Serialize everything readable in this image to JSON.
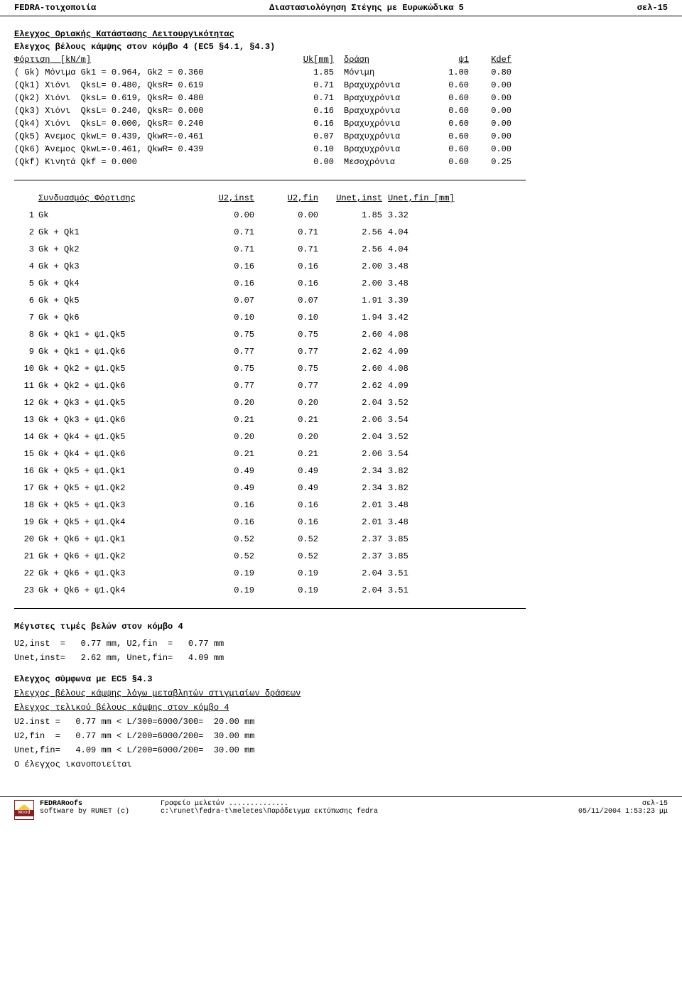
{
  "header": {
    "left": "FEDRA-τοιχοποιία",
    "center": "Διαστασιολόγηση Στέγης με Ευρωκώδικα 5",
    "right": "σελ-15"
  },
  "section1_title": "Ελεγχος Οριακής Κατάστασης Λειτουργικότητας",
  "section1_sub": "Ελεγχος βέλους κάμψης στον κόμβο 4 (EC5  §4.1, §4.3)",
  "loads": {
    "head": {
      "c1": "Φόρτιση  [kN/m]",
      "c2": "Uk[mm]",
      "c3": "δράση",
      "c4": "ψ1",
      "c5": "Kdef"
    },
    "rows": [
      {
        "c1": "( Gk) Μόνιμα Gk1 = 0.964, Gk2 = 0.360",
        "c2": "1.85",
        "c3": "Μόνιμη",
        "c4": "1.00",
        "c5": "0.80"
      },
      {
        "c1": "(Qk1) Χιόνι  QksL= 0.480, QksR= 0.619",
        "c2": "0.71",
        "c3": "Βραχυχρόνια",
        "c4": "0.60",
        "c5": "0.00"
      },
      {
        "c1": "(Qk2) Χιόνι  QksL= 0.619, QksR= 0.480",
        "c2": "0.71",
        "c3": "Βραχυχρόνια",
        "c4": "0.60",
        "c5": "0.00"
      },
      {
        "c1": "(Qk3) Χιόνι  QksL= 0.240, QksR= 0.000",
        "c2": "0.16",
        "c3": "Βραχυχρόνια",
        "c4": "0.60",
        "c5": "0.00"
      },
      {
        "c1": "(Qk4) Χιόνι  QksL= 0.000, QksR= 0.240",
        "c2": "0.16",
        "c3": "Βραχυχρόνια",
        "c4": "0.60",
        "c5": "0.00"
      },
      {
        "c1": "(Qk5) Άνεμος QkwL= 0.439, QkwR=-0.461",
        "c2": "0.07",
        "c3": "Βραχυχρόνια",
        "c4": "0.60",
        "c5": "0.00"
      },
      {
        "c1": "(Qk6) Άνεμος QkwL=-0.461, QkwR= 0.439",
        "c2": "0.10",
        "c3": "Βραχυχρόνια",
        "c4": "0.60",
        "c5": "0.00"
      },
      {
        "c1": "(Qkf) Κινητά Qkf = 0.000",
        "c2": "0.00",
        "c3": "Μεσοχρόνια",
        "c4": "0.60",
        "c5": "0.25"
      }
    ]
  },
  "combs": {
    "head": {
      "name": "Συνδυασμός Φόρτισης",
      "u2i": "U2,inst",
      "u2f": "U2,fin",
      "uni": "Unet,inst",
      "unf": "Unet,fin [mm]"
    },
    "rows": [
      {
        "i": "1",
        "n": "Gk",
        "a": "0.00",
        "b": "0.00",
        "c": "1.85",
        "d": "3.32"
      },
      {
        "i": "2",
        "n": "Gk + Qk1",
        "a": "0.71",
        "b": "0.71",
        "c": "2.56",
        "d": "4.04"
      },
      {
        "i": "3",
        "n": "Gk + Qk2",
        "a": "0.71",
        "b": "0.71",
        "c": "2.56",
        "d": "4.04"
      },
      {
        "i": "4",
        "n": "Gk + Qk3",
        "a": "0.16",
        "b": "0.16",
        "c": "2.00",
        "d": "3.48"
      },
      {
        "i": "5",
        "n": "Gk + Qk4",
        "a": "0.16",
        "b": "0.16",
        "c": "2.00",
        "d": "3.48"
      },
      {
        "i": "6",
        "n": "Gk + Qk5",
        "a": "0.07",
        "b": "0.07",
        "c": "1.91",
        "d": "3.39"
      },
      {
        "i": "7",
        "n": "Gk + Qk6",
        "a": "0.10",
        "b": "0.10",
        "c": "1.94",
        "d": "3.42"
      },
      {
        "i": "8",
        "n": "Gk + Qk1 + ψ1.Qk5",
        "a": "0.75",
        "b": "0.75",
        "c": "2.60",
        "d": "4.08"
      },
      {
        "i": "9",
        "n": "Gk + Qk1 + ψ1.Qk6",
        "a": "0.77",
        "b": "0.77",
        "c": "2.62",
        "d": "4.09"
      },
      {
        "i": "10",
        "n": "Gk + Qk2 + ψ1.Qk5",
        "a": "0.75",
        "b": "0.75",
        "c": "2.60",
        "d": "4.08"
      },
      {
        "i": "11",
        "n": "Gk + Qk2 + ψ1.Qk6",
        "a": "0.77",
        "b": "0.77",
        "c": "2.62",
        "d": "4.09"
      },
      {
        "i": "12",
        "n": "Gk + Qk3 + ψ1.Qk5",
        "a": "0.20",
        "b": "0.20",
        "c": "2.04",
        "d": "3.52"
      },
      {
        "i": "13",
        "n": "Gk + Qk3 + ψ1.Qk6",
        "a": "0.21",
        "b": "0.21",
        "c": "2.06",
        "d": "3.54"
      },
      {
        "i": "14",
        "n": "Gk + Qk4 + ψ1.Qk5",
        "a": "0.20",
        "b": "0.20",
        "c": "2.04",
        "d": "3.52"
      },
      {
        "i": "15",
        "n": "Gk + Qk4 + ψ1.Qk6",
        "a": "0.21",
        "b": "0.21",
        "c": "2.06",
        "d": "3.54"
      },
      {
        "i": "16",
        "n": "Gk + Qk5 + ψ1.Qk1",
        "a": "0.49",
        "b": "0.49",
        "c": "2.34",
        "d": "3.82"
      },
      {
        "i": "17",
        "n": "Gk + Qk5 + ψ1.Qk2",
        "a": "0.49",
        "b": "0.49",
        "c": "2.34",
        "d": "3.82"
      },
      {
        "i": "18",
        "n": "Gk + Qk5 + ψ1.Qk3",
        "a": "0.16",
        "b": "0.16",
        "c": "2.01",
        "d": "3.48"
      },
      {
        "i": "19",
        "n": "Gk + Qk5 + ψ1.Qk4",
        "a": "0.16",
        "b": "0.16",
        "c": "2.01",
        "d": "3.48"
      },
      {
        "i": "20",
        "n": "Gk + Qk6 + ψ1.Qk1",
        "a": "0.52",
        "b": "0.52",
        "c": "2.37",
        "d": "3.85"
      },
      {
        "i": "21",
        "n": "Gk + Qk6 + ψ1.Qk2",
        "a": "0.52",
        "b": "0.52",
        "c": "2.37",
        "d": "3.85"
      },
      {
        "i": "22",
        "n": "Gk + Qk6 + ψ1.Qk3",
        "a": "0.19",
        "b": "0.19",
        "c": "2.04",
        "d": "3.51"
      },
      {
        "i": "23",
        "n": "Gk + Qk6 + ψ1.Qk4",
        "a": "0.19",
        "b": "0.19",
        "c": "2.04",
        "d": "3.51"
      }
    ]
  },
  "max": {
    "title": "Μέγιστες τιμές βελών στον κόμβο 4",
    "l1": "U2,inst  =   0.77 mm, U2,fin  =   0.77 mm",
    "l2": "Unet,inst=   2.62 mm, Unet,fin=   4.09 mm"
  },
  "check": {
    "title": "Ελεγχος σύμφωνα με EC5  §4.3",
    "u1": "Ελεγχος βέλους κάμψης λόγω μεταβλητών στιγμιαίων δράσεων",
    "u2": "Ελεγχος τελικού βέλους κάμψης στον κόμβο 4",
    "l1": "U2.inst =   0.77 mm < L/300=6000/300=  20.00 mm",
    "l2": "U2,fin  =   0.77 mm < L/200=6000/200=  30.00 mm",
    "l3": "Unet,fin=   4.09 mm < L/200=6000/200=  30.00 mm",
    "ok": "Ο έλεγχος ικανοποιείται"
  },
  "footer": {
    "logo": "Wood",
    "prod1": "FEDRARoofs",
    "prod2": "software by RUNET (c)",
    "office": "Γραφείο μελετών ..............",
    "path": "c:\\runet\\fedra-t\\meletes\\Παράδειγμα εκτύπωσης fedra",
    "page": "σελ-15",
    "date": "05/11/2004 1:53:23 μμ"
  }
}
